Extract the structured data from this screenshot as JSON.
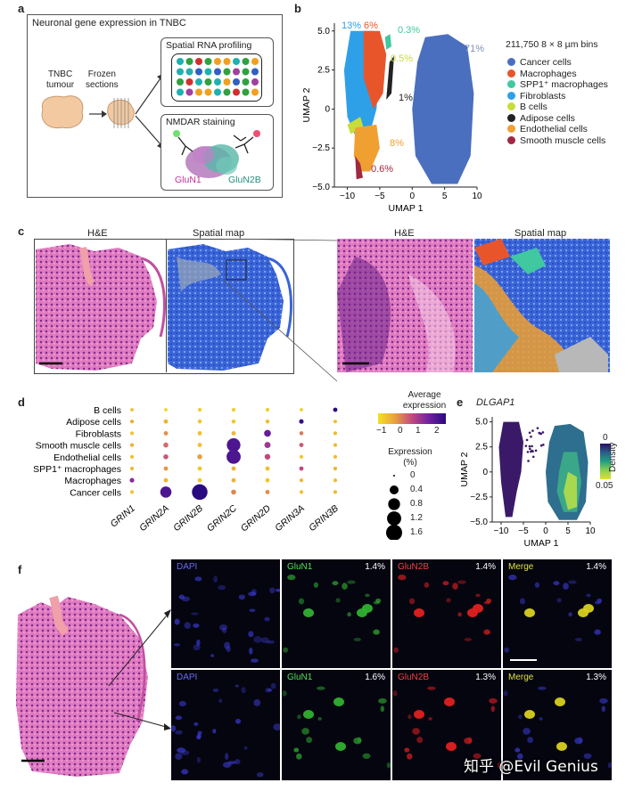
{
  "panels": {
    "a": {
      "label": "a",
      "title": "Neuronal gene expression in TNBC",
      "tnbc_tumour": [
        "TNBC",
        "tumour"
      ],
      "frozen_sections": [
        "Frozen",
        "sections"
      ],
      "spatial_rna": "Spatial RNA profiling",
      "nmdar": "NMDAR staining",
      "glun1": "GluN1",
      "glun2b": "GluN2B"
    },
    "b": {
      "label": "b",
      "bins_text": "211,750 8 × 8 µm bins",
      "percents": {
        "p13": "13%",
        "p6": "6%",
        "p03": "0.3%",
        "p71": "71%",
        "p05": "0.5%",
        "p1": "1%",
        "p8": "8%",
        "p06": "0.6%"
      }
    },
    "c": {
      "label": "c",
      "he": "H&E",
      "spatial_map": "Spatial map",
      "he2": "H&E",
      "spatial_map2": "Spatial map"
    },
    "d": {
      "label": "d",
      "avg_expr": [
        "Average",
        "expression"
      ],
      "avg_ticks": [
        "−1",
        "0",
        "1",
        "2"
      ],
      "expr_pct_title": [
        "Expression",
        "(%)"
      ],
      "size_legend": [
        "0",
        "0.4",
        "0.8",
        "1.2",
        "1.6"
      ]
    },
    "e": {
      "label": "e",
      "title": "DLGAP1",
      "density_title": "Density",
      "density_ticks": [
        "0",
        "0.05"
      ]
    },
    "f": {
      "label": "f",
      "row1": {
        "dapi": "DAPI",
        "glun1": "GluN1",
        "glun1_pct": "1.4%",
        "glun2b": "GluN2B",
        "glun2b_pct": "1.4%",
        "merge": "Merge",
        "merge_pct": "1.4%"
      },
      "row2": {
        "dapi": "DAPI",
        "glun1": "GluN1",
        "glun1_pct": "1.6%",
        "glun2b": "GluN2B",
        "glun2b_pct": "1.3%",
        "merge": "Merge",
        "merge_pct": "1.3%"
      }
    }
  },
  "watermark": "知乎 @Evil Genius",
  "colors": {
    "cancer": "#4a6fbf",
    "macrophages": "#e8552b",
    "spp1": "#40c8a0",
    "fibroblasts": "#2ea0e8",
    "bcells": "#c8dc3a",
    "adipose": "#222222",
    "endothelial": "#f0a030",
    "smooth": "#a02840"
  },
  "chart_data": [
    {
      "panel": "b",
      "type": "scatter",
      "xlabel": "UMAP 1",
      "ylabel": "UMAP 2",
      "xlim": [
        -12,
        10
      ],
      "ylim": [
        -5,
        5.5
      ],
      "xticks": [
        "−10",
        "−5",
        "0",
        "5",
        "10"
      ],
      "yticks": [
        "5.0",
        "2.5",
        "0",
        "−2.5",
        "−5.0"
      ],
      "legend_position": "right",
      "series": [
        {
          "name": "Cancer cells",
          "share": "71%",
          "color": "#4a6fbf"
        },
        {
          "name": "Macrophages",
          "share": "6%",
          "color": "#e8552b"
        },
        {
          "name": "SPP1⁺ macrophages",
          "share": "0.3%",
          "color": "#40c8a0"
        },
        {
          "name": "Fibroblasts",
          "share": "13%",
          "color": "#2ea0e8"
        },
        {
          "name": "B cells",
          "share": "0.5%",
          "color": "#c8dc3a"
        },
        {
          "name": "Adipose cells",
          "share": "1%",
          "color": "#222222"
        },
        {
          "name": "Endothelial cells",
          "share": "8%",
          "color": "#f0a030"
        },
        {
          "name": "Smooth muscle cells",
          "share": "0.6%",
          "color": "#a02840"
        }
      ]
    },
    {
      "panel": "d",
      "type": "dotplot",
      "x": [
        "GRIN1",
        "GRIN2A",
        "GRIN2B",
        "GRIN2C",
        "GRIN2D",
        "GRIN3A",
        "GRIN3B"
      ],
      "y": [
        "B cells",
        "Adipose cells",
        "Fibroblasts",
        "Smooth muscle cells",
        "Endothelial cells",
        "SPP1⁺ macrophages",
        "Macrophages",
        "Cancer cells"
      ],
      "color_label": "Average expression",
      "color_range": [
        -1,
        2.3
      ],
      "size_label": "Expression (%)",
      "size_range": [
        0,
        1.6
      ],
      "cells": [
        {
          "gene": "GRIN1",
          "cell": "B cells",
          "expr": -0.5,
          "pct": 0.02
        },
        {
          "gene": "GRIN1",
          "cell": "Adipose cells",
          "expr": -0.2,
          "pct": 0.03
        },
        {
          "gene": "GRIN1",
          "cell": "Fibroblasts",
          "expr": -0.6,
          "pct": 0.03
        },
        {
          "gene": "GRIN1",
          "cell": "Smooth muscle cells",
          "expr": -0.3,
          "pct": 0.03
        },
        {
          "gene": "GRIN1",
          "cell": "Endothelial cells",
          "expr": -0.5,
          "pct": 0.03
        },
        {
          "gene": "GRIN1",
          "cell": "SPP1⁺ macrophages",
          "expr": -0.4,
          "pct": 0.03
        },
        {
          "gene": "GRIN1",
          "cell": "Macrophages",
          "expr": 1.5,
          "pct": 0.06
        },
        {
          "gene": "GRIN1",
          "cell": "Cancer cells",
          "expr": -0.6,
          "pct": 0.03
        },
        {
          "gene": "GRIN2A",
          "cell": "B cells",
          "expr": -0.8,
          "pct": 0.02
        },
        {
          "gene": "GRIN2A",
          "cell": "Adipose cells",
          "expr": -0.3,
          "pct": 0.05
        },
        {
          "gene": "GRIN2A",
          "cell": "Fibroblasts",
          "expr": 0.2,
          "pct": 0.05
        },
        {
          "gene": "GRIN2A",
          "cell": "Smooth muscle cells",
          "expr": 0.6,
          "pct": 0.08
        },
        {
          "gene": "GRIN2A",
          "cell": "Endothelial cells",
          "expr": 0.8,
          "pct": 0.08
        },
        {
          "gene": "GRIN2A",
          "cell": "SPP1⁺ macrophages",
          "expr": 0.1,
          "pct": 0.05
        },
        {
          "gene": "GRIN2A",
          "cell": "Macrophages",
          "expr": -0.3,
          "pct": 0.05
        },
        {
          "gene": "GRIN2A",
          "cell": "Cancer cells",
          "expr": 2.0,
          "pct": 0.7
        },
        {
          "gene": "GRIN2B",
          "cell": "B cells",
          "expr": -0.7,
          "pct": 0.03
        },
        {
          "gene": "GRIN2B",
          "cell": "Adipose cells",
          "expr": -0.6,
          "pct": 0.04
        },
        {
          "gene": "GRIN2B",
          "cell": "Fibroblasts",
          "expr": -0.5,
          "pct": 0.05
        },
        {
          "gene": "GRIN2B",
          "cell": "Smooth muscle cells",
          "expr": -0.5,
          "pct": 0.05
        },
        {
          "gene": "GRIN2B",
          "cell": "Endothelial cells",
          "expr": 0.0,
          "pct": 0.08
        },
        {
          "gene": "GRIN2B",
          "cell": "SPP1⁺ macrophages",
          "expr": -0.6,
          "pct": 0.05
        },
        {
          "gene": "GRIN2B",
          "cell": "Macrophages",
          "expr": -0.6,
          "pct": 0.05
        },
        {
          "gene": "GRIN2B",
          "cell": "Cancer cells",
          "expr": 2.3,
          "pct": 1.5
        },
        {
          "gene": "GRIN2C",
          "cell": "B cells",
          "expr": -0.7,
          "pct": 0.03
        },
        {
          "gene": "GRIN2C",
          "cell": "Adipose cells",
          "expr": -0.6,
          "pct": 0.04
        },
        {
          "gene": "GRIN2C",
          "cell": "Fibroblasts",
          "expr": -0.4,
          "pct": 0.05
        },
        {
          "gene": "GRIN2C",
          "cell": "Smooth muscle cells",
          "expr": 2.0,
          "pct": 1.1
        },
        {
          "gene": "GRIN2C",
          "cell": "Endothelial cells",
          "expr": 2.0,
          "pct": 1.2
        },
        {
          "gene": "GRIN2C",
          "cell": "SPP1⁺ macrophages",
          "expr": -0.3,
          "pct": 0.05
        },
        {
          "gene": "GRIN2C",
          "cell": "Macrophages",
          "expr": -0.3,
          "pct": 0.05
        },
        {
          "gene": "GRIN2C",
          "cell": "Cancer cells",
          "expr": 0.3,
          "pct": 0.08
        },
        {
          "gene": "GRIN2D",
          "cell": "B cells",
          "expr": -0.7,
          "pct": 0.03
        },
        {
          "gene": "GRIN2D",
          "cell": "Adipose cells",
          "expr": -0.5,
          "pct": 0.04
        },
        {
          "gene": "GRIN2D",
          "cell": "Fibroblasts",
          "expr": 1.8,
          "pct": 0.2
        },
        {
          "gene": "GRIN2D",
          "cell": "Smooth muscle cells",
          "expr": 1.3,
          "pct": 0.15
        },
        {
          "gene": "GRIN2D",
          "cell": "Endothelial cells",
          "expr": 1.0,
          "pct": 0.12
        },
        {
          "gene": "GRIN2D",
          "cell": "SPP1⁺ macrophages",
          "expr": -0.5,
          "pct": 0.05
        },
        {
          "gene": "GRIN2D",
          "cell": "Macrophages",
          "expr": -0.6,
          "pct": 0.05
        },
        {
          "gene": "GRIN2D",
          "cell": "Cancer cells",
          "expr": 0.2,
          "pct": 0.05
        },
        {
          "gene": "GRIN3A",
          "cell": "B cells",
          "expr": -0.7,
          "pct": 0.02
        },
        {
          "gene": "GRIN3A",
          "cell": "Adipose cells",
          "expr": 2.2,
          "pct": 0.06
        },
        {
          "gene": "GRIN3A",
          "cell": "Fibroblasts",
          "expr": 0.4,
          "pct": 0.04
        },
        {
          "gene": "GRIN3A",
          "cell": "Smooth muscle cells",
          "expr": 0.8,
          "pct": 0.05
        },
        {
          "gene": "GRIN3A",
          "cell": "Endothelial cells",
          "expr": -0.6,
          "pct": 0.03
        },
        {
          "gene": "GRIN3A",
          "cell": "SPP1⁺ macrophages",
          "expr": 1.0,
          "pct": 0.05
        },
        {
          "gene": "GRIN3A",
          "cell": "Macrophages",
          "expr": -0.3,
          "pct": 0.03
        },
        {
          "gene": "GRIN3A",
          "cell": "Cancer cells",
          "expr": -0.5,
          "pct": 0.03
        },
        {
          "gene": "GRIN3B",
          "cell": "B cells",
          "expr": 2.3,
          "pct": 0.05
        },
        {
          "gene": "GRIN3B",
          "cell": "Adipose cells",
          "expr": -0.5,
          "pct": 0.03
        },
        {
          "gene": "GRIN3B",
          "cell": "Fibroblasts",
          "expr": -0.4,
          "pct": 0.03
        },
        {
          "gene": "GRIN3B",
          "cell": "Smooth muscle cells",
          "expr": -0.4,
          "pct": 0.03
        },
        {
          "gene": "GRIN3B",
          "cell": "Endothelial cells",
          "expr": -0.4,
          "pct": 0.03
        },
        {
          "gene": "GRIN3B",
          "cell": "SPP1⁺ macrophages",
          "expr": -0.3,
          "pct": 0.03
        },
        {
          "gene": "GRIN3B",
          "cell": "Macrophages",
          "expr": -0.4,
          "pct": 0.03
        },
        {
          "gene": "GRIN3B",
          "cell": "Cancer cells",
          "expr": -0.4,
          "pct": 0.03
        }
      ]
    },
    {
      "panel": "e",
      "type": "scatter",
      "title": "DLGAP1",
      "xlabel": "UMAP 1",
      "ylabel": "UMAP 2",
      "xlim": [
        -12,
        10
      ],
      "ylim": [
        -5,
        5.5
      ],
      "xticks": [
        "−10",
        "−5",
        "0",
        "5",
        "10"
      ],
      "yticks": [
        "5.0",
        "2.5",
        "0",
        "−2.5",
        "−5.0"
      ],
      "color_label": "Density",
      "color_range": [
        0,
        0.05
      ]
    }
  ]
}
